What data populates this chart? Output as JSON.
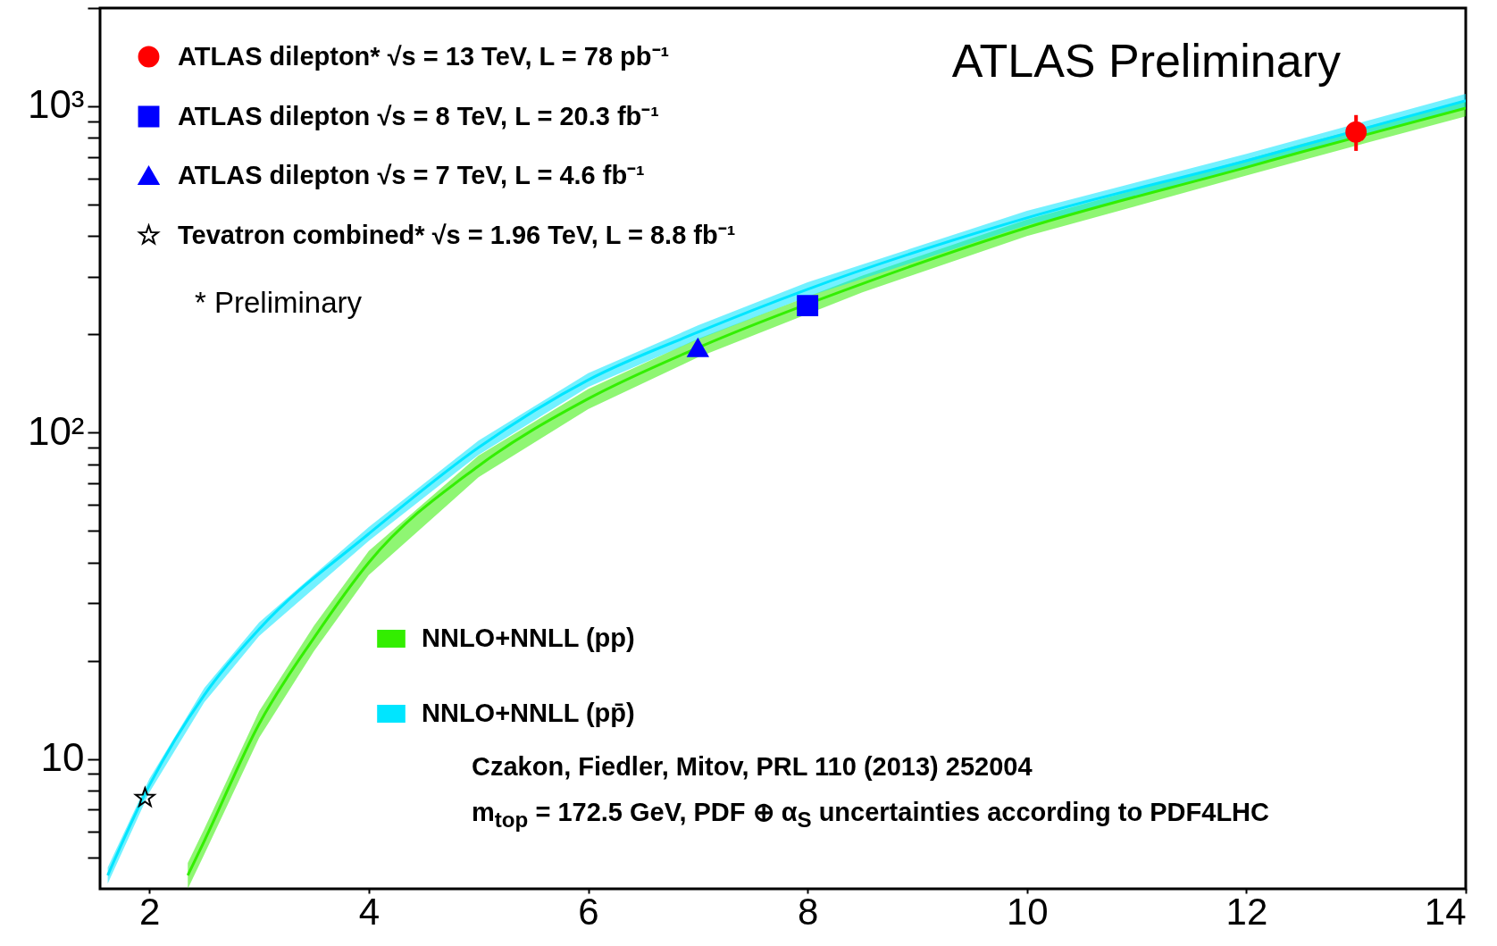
{
  "chart_data": {
    "type": "line",
    "xlim": [
      1.55,
      14
    ],
    "xticks": [
      2,
      4,
      6,
      8,
      10,
      12,
      14
    ],
    "ylim": [
      4,
      2000
    ],
    "log": true,
    "yticks": [
      {
        "value": 5,
        "label": null
      },
      {
        "value": 6,
        "label": null
      },
      {
        "value": 7,
        "label": null
      },
      {
        "value": 8,
        "label": null
      },
      {
        "value": 9,
        "label": null
      },
      {
        "value": 10,
        "label": "10"
      },
      {
        "value": 20,
        "label": null
      },
      {
        "value": 30,
        "label": null
      },
      {
        "value": 40,
        "label": null
      },
      {
        "value": 50,
        "label": null
      },
      {
        "value": 60,
        "label": null
      },
      {
        "value": 70,
        "label": null
      },
      {
        "value": 80,
        "label": null
      },
      {
        "value": 90,
        "label": null
      },
      {
        "value": 100,
        "label": "10²"
      },
      {
        "value": 200,
        "label": null
      },
      {
        "value": 300,
        "label": null
      },
      {
        "value": 400,
        "label": null
      },
      {
        "value": 500,
        "label": null
      },
      {
        "value": 600,
        "label": null
      },
      {
        "value": 700,
        "label": null
      },
      {
        "value": 800,
        "label": null
      },
      {
        "value": 900,
        "label": null
      },
      {
        "value": 1000,
        "label": "10³"
      },
      {
        "value": 2000,
        "label": null
      }
    ],
    "legend": "top left",
    "series": [
      {
        "name": "NNLO+NNLL (pp)",
        "color": "#33ee00",
        "x": [
          2.35,
          2.5,
          3,
          3.5,
          4,
          5,
          6,
          7,
          8.5,
          10,
          12,
          12.5,
          14
        ],
        "values": [
          4.4,
          5.6,
          12.8,
          23.5,
          40,
          79,
          127,
          182,
          286,
          425,
          650,
          724,
          987
        ],
        "lower": [
          4.0,
          5.1,
          11.6,
          21.4,
          36.6,
          73,
          118,
          170,
          269,
          400,
          613,
          682,
          932
        ],
        "upper": [
          4.8,
          6.1,
          14.0,
          25.6,
          43.4,
          85,
          136,
          194,
          303,
          450,
          687,
          766,
          1042
        ]
      },
      {
        "name": "NNLO+NNLL (pp̄)",
        "color": "#00e5ff",
        "x": [
          1.62,
          2,
          2.5,
          3,
          4,
          5,
          6,
          7,
          8,
          10,
          12,
          14
        ],
        "values": [
          4.4,
          8.3,
          15.7,
          25,
          49,
          90,
          145,
          203,
          275,
          455,
          681,
          1040
        ],
        "lower": [
          4.15,
          7.9,
          14.9,
          23.8,
          46.6,
          85.5,
          138,
          193,
          261,
          432,
          647,
          988
        ],
        "upper": [
          4.65,
          8.7,
          16.5,
          26.2,
          51.4,
          94.5,
          152,
          213,
          289,
          478,
          715,
          1092
        ]
      },
      {
        "type": "scatter",
        "name": "ATLAS dilepton*  √s = 13 TeV,  L = 78 pb⁻¹",
        "color": "#ff0000",
        "marker": "circle",
        "x": [
          13
        ],
        "values": [
          834
        ],
        "errors": [
          [
            730,
            940
          ]
        ]
      },
      {
        "type": "scatter",
        "name": "ATLAS dilepton  √s = 8 TeV,  L = 20.3 fb⁻¹",
        "color": "#0000ff",
        "marker": "square",
        "x": [
          8
        ],
        "values": [
          245
        ]
      },
      {
        "type": "scatter",
        "name": "ATLAS dilepton  √s = 7 TeV,  L = 4.6 fb⁻¹",
        "color": "#0000ff",
        "marker": "triangle",
        "x": [
          7
        ],
        "values": [
          182
        ]
      },
      {
        "type": "scatter",
        "name": "Tevatron combined*  √s = 1.96 TeV,  L = 8.8 fb⁻¹",
        "color": "#000000",
        "marker": "star",
        "x": [
          1.96
        ],
        "values": [
          7.6
        ]
      }
    ],
    "annotations": [
      "ATLAS Preliminary",
      "* Preliminary",
      "Czakon, Fiedler, Mitov, PRL 110 (2013) 252004",
      "m$_{top}$ = 172.5 GeV, PDF ⊕ α$_{S}$ uncertainties according to PDF4LHC"
    ]
  }
}
